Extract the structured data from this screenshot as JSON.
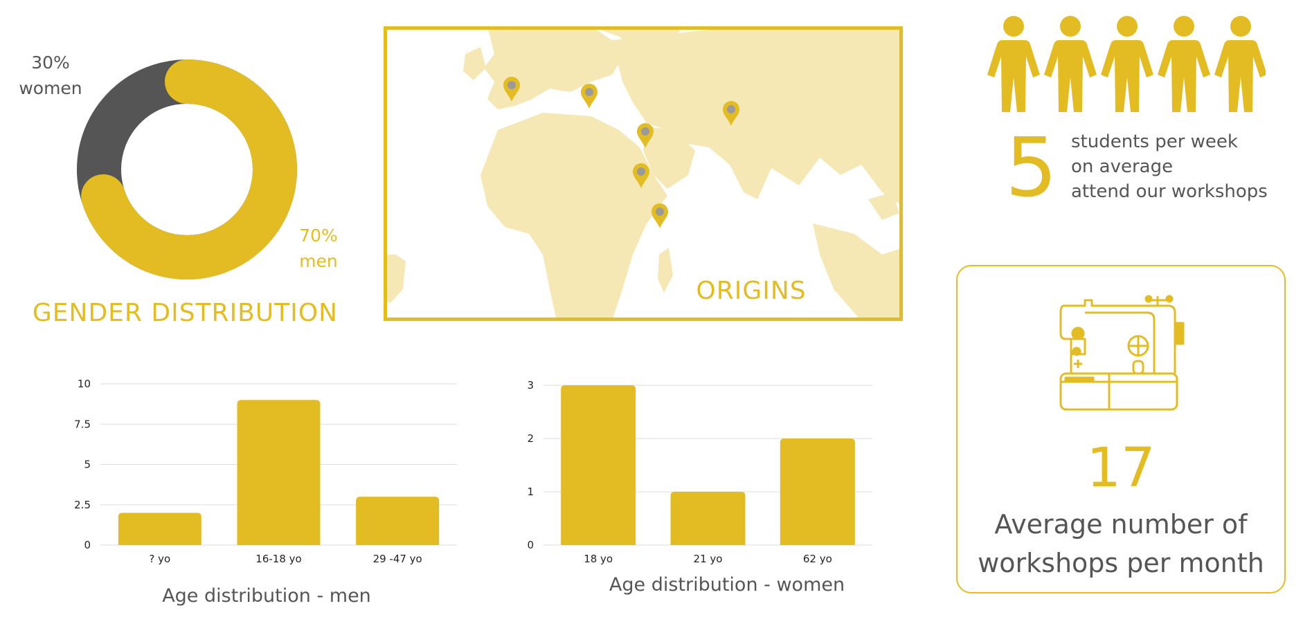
{
  "gender": {
    "title": "GENDER DISTRIBUTION",
    "women_pct": "30%",
    "women_label": "women",
    "men_pct": "70%",
    "men_label": "men"
  },
  "origins": {
    "title": "ORIGINS",
    "pin_count": 6
  },
  "students": {
    "value": "5",
    "line1": "students per week",
    "line2": "on average",
    "line3": "attend our workshops",
    "people_icons": 5
  },
  "workshops": {
    "value": "17",
    "line1": "Average number of",
    "line2": "workshops per month",
    "icon": "sewing-machine-icon"
  },
  "colors": {
    "accent": "#e3bc24",
    "dark": "#555555",
    "map_land": "#f5e8b4",
    "pin_dot": "#9a9a9a"
  },
  "chart_data": [
    {
      "type": "pie",
      "title": "GENDER DISTRIBUTION",
      "categories": [
        "women",
        "men"
      ],
      "values": [
        30,
        70
      ],
      "colors": [
        "#555555",
        "#e3bc24"
      ]
    },
    {
      "type": "bar",
      "title": "Age distribution - men",
      "categories": [
        "? yo",
        "16-18 yo",
        "29 -47 yo"
      ],
      "values": [
        2,
        9,
        3
      ],
      "ylim": [
        0,
        10
      ],
      "yticks": [
        "0",
        "2.5",
        "5",
        "7.5",
        "10"
      ],
      "grid": true
    },
    {
      "type": "bar",
      "title": "Age distribution - women",
      "categories": [
        "18 yo",
        "21 yo",
        "62 yo"
      ],
      "values": [
        3,
        1,
        2
      ],
      "ylim": [
        0,
        3
      ],
      "yticks": [
        "0",
        "1",
        "2",
        "3"
      ],
      "grid": true
    }
  ]
}
